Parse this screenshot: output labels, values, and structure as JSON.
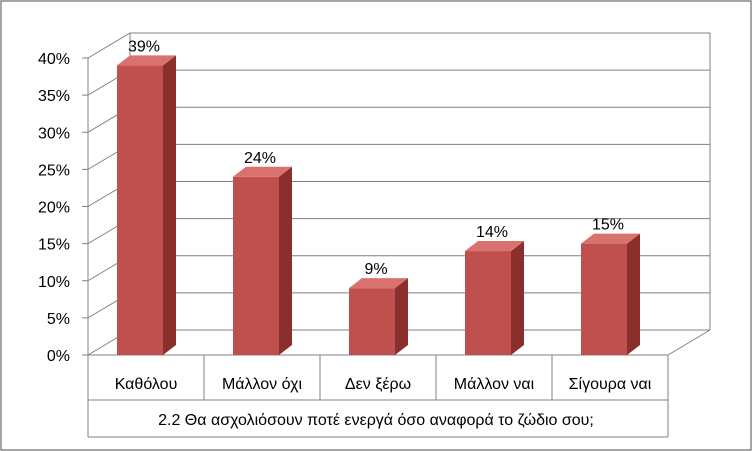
{
  "chart_data": {
    "type": "bar",
    "categories": [
      "Καθόλου",
      "Μάλλον όχι",
      "Δεν ξέρω",
      "Μάλλον ναι",
      "Σίγουρα ναι"
    ],
    "values": [
      39,
      24,
      9,
      14,
      15
    ],
    "data_labels": [
      "39%",
      "24%",
      "9%",
      "14%",
      "15%"
    ],
    "xlabel": "2.2 Θα ασχολιόσουν ποτέ ενεργά όσο αναφορά το ζώδιο σου;",
    "ylabel": "",
    "ylim": [
      0,
      40
    ],
    "y_ticks": [
      "0%",
      "5%",
      "10%",
      "15%",
      "20%",
      "25%",
      "30%",
      "35%",
      "40%"
    ],
    "grid": true,
    "style": "3d-column",
    "colors": {
      "bar_front": "#C0504D",
      "bar_side": "#8B2F2D",
      "bar_top": "#D9726F",
      "grid": "#808080",
      "axis": "#808080",
      "border": "#868686"
    }
  }
}
